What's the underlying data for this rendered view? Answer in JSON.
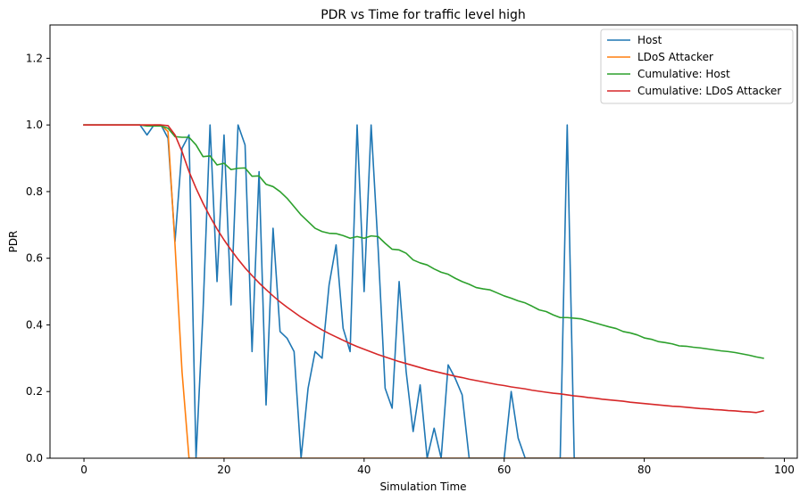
{
  "chart_data": {
    "type": "line",
    "title": "PDR vs Time for traffic level high",
    "xlabel": "Simulation Time",
    "ylabel": "PDR",
    "xlim": [
      -4.85,
      101.85
    ],
    "ylim": [
      0,
      1.3
    ],
    "xticks": [
      0,
      20,
      40,
      60,
      80,
      100
    ],
    "yticks": [
      0.0,
      0.2,
      0.4,
      0.6,
      0.8,
      1.0,
      1.2
    ],
    "xtick_labels": [
      "0",
      "20",
      "40",
      "60",
      "80",
      "100"
    ],
    "ytick_labels": [
      "0.0",
      "0.2",
      "0.4",
      "0.6",
      "0.8",
      "1.0",
      "1.2"
    ],
    "grid": false,
    "legend_position": "top-right",
    "series": [
      {
        "name": "Host",
        "color": "#1f77b4",
        "x": [
          0,
          1,
          2,
          3,
          4,
          5,
          6,
          7,
          8,
          9,
          10,
          11,
          12,
          13,
          14,
          15,
          16,
          17,
          18,
          19,
          20,
          21,
          22,
          23,
          24,
          25,
          26,
          27,
          28,
          29,
          30,
          31,
          32,
          33,
          34,
          35,
          36,
          37,
          38,
          39,
          40,
          41,
          42,
          43,
          44,
          45,
          46,
          47,
          48,
          49,
          50,
          51,
          52,
          53,
          54,
          55,
          56,
          57,
          58,
          59,
          60,
          61,
          62,
          63,
          64,
          65,
          66,
          67,
          68,
          69,
          70,
          71,
          72,
          73,
          74,
          75,
          76,
          77,
          78,
          79,
          80,
          81,
          82,
          83,
          84,
          85,
          86,
          87,
          88,
          89,
          90,
          91,
          92,
          93,
          94,
          95,
          96,
          97
        ],
        "y": [
          1,
          1,
          1,
          1,
          1,
          1,
          1,
          1,
          1,
          0.97,
          1,
          1,
          0.96,
          0.65,
          0.93,
          0.97,
          0,
          0.44,
          1,
          0.53,
          0.97,
          0.46,
          1,
          0.94,
          0.32,
          0.86,
          0.16,
          0.69,
          0.38,
          0.36,
          0.32,
          0,
          0.21,
          0.32,
          0.3,
          0.52,
          0.64,
          0.39,
          0.32,
          1,
          0.5,
          1,
          0.63,
          0.21,
          0.15,
          0.53,
          0.26,
          0.08,
          0.22,
          0,
          0.09,
          0,
          0.28,
          0.24,
          0.19,
          0,
          0,
          0,
          0,
          0,
          0,
          0.2,
          0.06,
          0,
          0,
          0,
          0,
          0,
          0,
          1,
          0,
          0,
          0,
          0,
          0,
          0,
          0,
          0,
          0,
          0,
          0,
          0,
          0,
          0,
          0,
          0,
          0,
          0,
          0,
          0,
          0,
          0,
          0,
          0,
          0,
          0,
          0,
          0
        ]
      },
      {
        "name": "LDoS Attacker",
        "color": "#ff7f0e",
        "x": [
          0,
          1,
          2,
          3,
          4,
          5,
          6,
          7,
          8,
          9,
          10,
          11,
          12,
          13,
          14,
          15,
          16,
          17,
          18,
          19,
          20,
          21,
          22,
          23,
          24,
          25,
          26,
          27,
          28,
          29,
          30,
          31,
          32,
          33,
          34,
          35,
          36,
          37,
          38,
          39,
          40,
          41,
          42,
          43,
          44,
          45,
          46,
          47,
          48,
          49,
          50,
          51,
          52,
          53,
          54,
          55,
          56,
          57,
          58,
          59,
          60,
          61,
          62,
          63,
          64,
          65,
          66,
          67,
          68,
          69,
          70,
          71,
          72,
          73,
          74,
          75,
          76,
          77,
          78,
          79,
          80,
          81,
          82,
          83,
          84,
          85,
          86,
          87,
          88,
          89,
          90,
          91,
          92,
          93,
          94,
          95,
          96,
          97
        ],
        "y": [
          1,
          1,
          1,
          1,
          1,
          1,
          1,
          1,
          1,
          1,
          1,
          1,
          0.98,
          0.64,
          0.26,
          0,
          0,
          0,
          0,
          0,
          0,
          0,
          0,
          0,
          0,
          0,
          0,
          0,
          0,
          0,
          0,
          0,
          0,
          0,
          0,
          0,
          0,
          0,
          0,
          0,
          0,
          0,
          0,
          0,
          0,
          0,
          0,
          0,
          0,
          0,
          0,
          0,
          0,
          0,
          0,
          0,
          0,
          0,
          0,
          0,
          0,
          0,
          0,
          0,
          0,
          0,
          0,
          0,
          0,
          0,
          0,
          0,
          0,
          0,
          0,
          0,
          0,
          0,
          0,
          0,
          0,
          0,
          0,
          0,
          0,
          0,
          0,
          0,
          0,
          0,
          0,
          0,
          0,
          0,
          0,
          0,
          0,
          0
        ]
      },
      {
        "name": "Cumulative: Host",
        "color": "#2ca02c",
        "x": [
          0,
          1,
          2,
          3,
          4,
          5,
          6,
          7,
          8,
          9,
          10,
          11,
          12,
          13,
          14,
          15,
          16,
          17,
          18,
          19,
          20,
          21,
          22,
          23,
          24,
          25,
          26,
          27,
          28,
          29,
          30,
          31,
          32,
          33,
          34,
          35,
          36,
          37,
          38,
          39,
          40,
          41,
          42,
          43,
          44,
          45,
          46,
          47,
          48,
          49,
          50,
          51,
          52,
          53,
          54,
          55,
          56,
          57,
          58,
          59,
          60,
          61,
          62,
          63,
          64,
          65,
          66,
          67,
          68,
          69,
          70,
          71,
          72,
          73,
          74,
          75,
          76,
          77,
          78,
          79,
          80,
          81,
          82,
          83,
          84,
          85,
          86,
          87,
          88,
          89,
          90,
          91,
          92,
          93,
          94,
          95,
          96,
          97
        ],
        "y": [
          1,
          1,
          1,
          1,
          1,
          1,
          1,
          1,
          1,
          0.997,
          0.997,
          0.997,
          0.99,
          0.965,
          0.963,
          0.963,
          0.94,
          0.905,
          0.907,
          0.88,
          0.885,
          0.866,
          0.87,
          0.871,
          0.846,
          0.847,
          0.822,
          0.815,
          0.8,
          0.78,
          0.755,
          0.73,
          0.71,
          0.69,
          0.68,
          0.675,
          0.674,
          0.668,
          0.66,
          0.665,
          0.66,
          0.667,
          0.665,
          0.645,
          0.627,
          0.625,
          0.615,
          0.595,
          0.586,
          0.58,
          0.568,
          0.558,
          0.552,
          0.54,
          0.53,
          0.522,
          0.512,
          0.508,
          0.505,
          0.496,
          0.487,
          0.48,
          0.472,
          0.466,
          0.456,
          0.445,
          0.44,
          0.43,
          0.422,
          0.422,
          0.42,
          0.418,
          0.412,
          0.406,
          0.4,
          0.394,
          0.389,
          0.38,
          0.376,
          0.37,
          0.361,
          0.357,
          0.35,
          0.347,
          0.343,
          0.337,
          0.336,
          0.333,
          0.331,
          0.328,
          0.325,
          0.322,
          0.32,
          0.317,
          0.313,
          0.309,
          0.304,
          0.3
        ]
      },
      {
        "name": "Cumulative: LDoS Attacker",
        "color": "#d62728",
        "x": [
          0,
          1,
          2,
          3,
          4,
          5,
          6,
          7,
          8,
          9,
          10,
          11,
          12,
          13,
          14,
          15,
          16,
          17,
          18,
          19,
          20,
          21,
          22,
          23,
          24,
          25,
          26,
          27,
          28,
          29,
          30,
          31,
          32,
          33,
          34,
          35,
          36,
          37,
          38,
          39,
          40,
          41,
          42,
          43,
          44,
          45,
          46,
          47,
          48,
          49,
          50,
          51,
          52,
          53,
          54,
          55,
          56,
          57,
          58,
          59,
          60,
          61,
          62,
          63,
          64,
          65,
          66,
          67,
          68,
          69,
          70,
          71,
          72,
          73,
          74,
          75,
          76,
          77,
          78,
          79,
          80,
          81,
          82,
          83,
          84,
          85,
          86,
          87,
          88,
          89,
          90,
          91,
          92,
          93,
          94,
          95,
          96,
          97
        ],
        "y": [
          1,
          1,
          1,
          1,
          1,
          1,
          1,
          1,
          1,
          1,
          1,
          1,
          0.998,
          0.97,
          0.92,
          0.86,
          0.81,
          0.765,
          0.725,
          0.688,
          0.655,
          0.625,
          0.597,
          0.571,
          0.548,
          0.526,
          0.506,
          0.487,
          0.469,
          0.453,
          0.438,
          0.423,
          0.41,
          0.397,
          0.385,
          0.374,
          0.364,
          0.354,
          0.344,
          0.335,
          0.327,
          0.319,
          0.311,
          0.304,
          0.297,
          0.29,
          0.284,
          0.278,
          0.272,
          0.266,
          0.261,
          0.256,
          0.251,
          0.246,
          0.242,
          0.237,
          0.233,
          0.229,
          0.225,
          0.221,
          0.218,
          0.214,
          0.211,
          0.208,
          0.204,
          0.201,
          0.198,
          0.195,
          0.193,
          0.19,
          0.187,
          0.185,
          0.182,
          0.18,
          0.177,
          0.175,
          0.173,
          0.171,
          0.168,
          0.166,
          0.164,
          0.162,
          0.16,
          0.158,
          0.156,
          0.155,
          0.153,
          0.151,
          0.149,
          0.148,
          0.146,
          0.145,
          0.143,
          0.142,
          0.14,
          0.139,
          0.137,
          0.142
        ]
      }
    ]
  }
}
